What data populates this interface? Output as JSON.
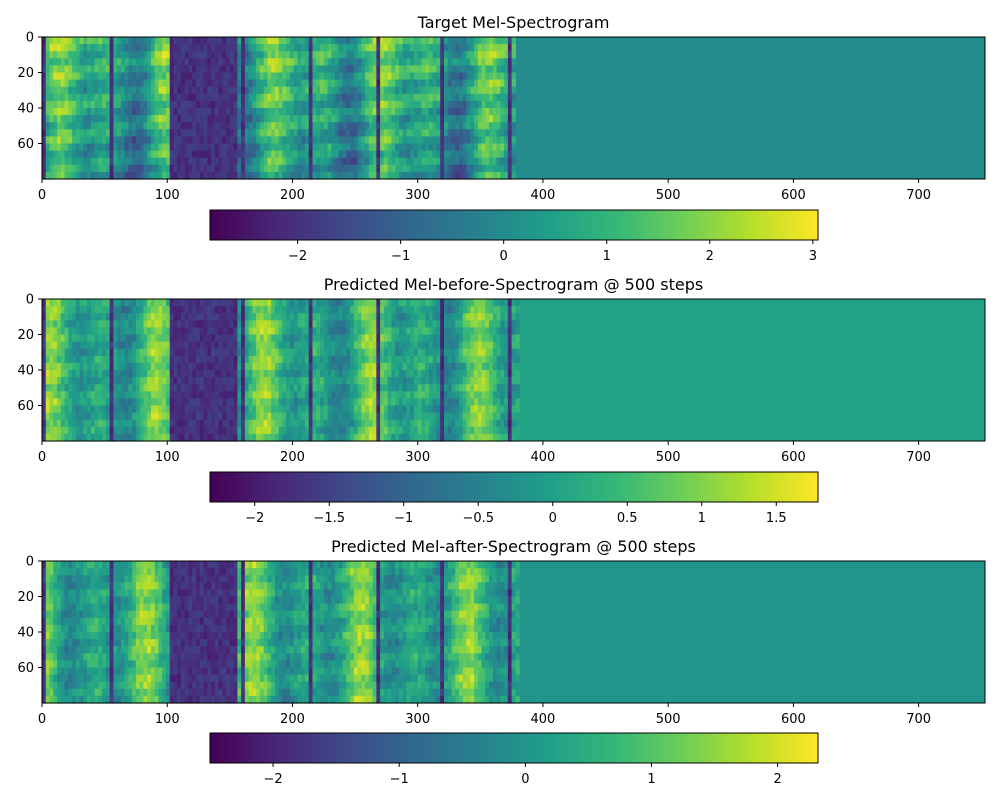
{
  "colormap": {
    "name": "viridis",
    "stops": [
      "#440154",
      "#482878",
      "#3e4a89",
      "#31688e",
      "#26828e",
      "#1f9e89",
      "#35b779",
      "#6ece58",
      "#b5de2b",
      "#fde725"
    ]
  },
  "chart_data": [
    {
      "type": "heatmap",
      "title": "Target Mel-Spectrogram",
      "xlabel": "",
      "ylabel": "",
      "xlim": [
        0,
        753
      ],
      "ylim": [
        80,
        0
      ],
      "xticks": [
        0,
        100,
        200,
        300,
        400,
        500,
        600,
        700
      ],
      "yticks": [
        0,
        20,
        40,
        60
      ],
      "signal_frames": 376,
      "pad_value": 0.0,
      "colorbar": {
        "vmin": -2.85,
        "vmax": 3.05,
        "ticks": [
          -2,
          -1,
          0,
          1,
          2,
          3
        ]
      }
    },
    {
      "type": "heatmap",
      "title": "Predicted Mel-before-Spectrogram @ 500 steps",
      "xlabel": "",
      "ylabel": "",
      "xlim": [
        0,
        753
      ],
      "ylim": [
        80,
        0
      ],
      "xticks": [
        0,
        100,
        200,
        300,
        400,
        500,
        600,
        700
      ],
      "yticks": [
        0,
        20,
        40,
        60
      ],
      "signal_frames": 379,
      "pad_value": 0.05,
      "colorbar": {
        "vmin": -2.3,
        "vmax": 1.78,
        "ticks": [
          -2.0,
          -1.5,
          -1.0,
          -0.5,
          0.0,
          0.5,
          1.0,
          1.5
        ]
      }
    },
    {
      "type": "heatmap",
      "title": "Predicted Mel-after-Spectrogram @ 500 steps",
      "xlabel": "",
      "ylabel": "",
      "xlim": [
        0,
        753
      ],
      "ylim": [
        80,
        0
      ],
      "xticks": [
        0,
        100,
        200,
        300,
        400,
        500,
        600,
        700
      ],
      "yticks": [
        0,
        20,
        40,
        60
      ],
      "signal_frames": 380,
      "pad_value": 0.0,
      "colorbar": {
        "vmin": -2.5,
        "vmax": 2.32,
        "ticks": [
          -2,
          -1,
          0,
          1,
          2
        ]
      }
    }
  ]
}
